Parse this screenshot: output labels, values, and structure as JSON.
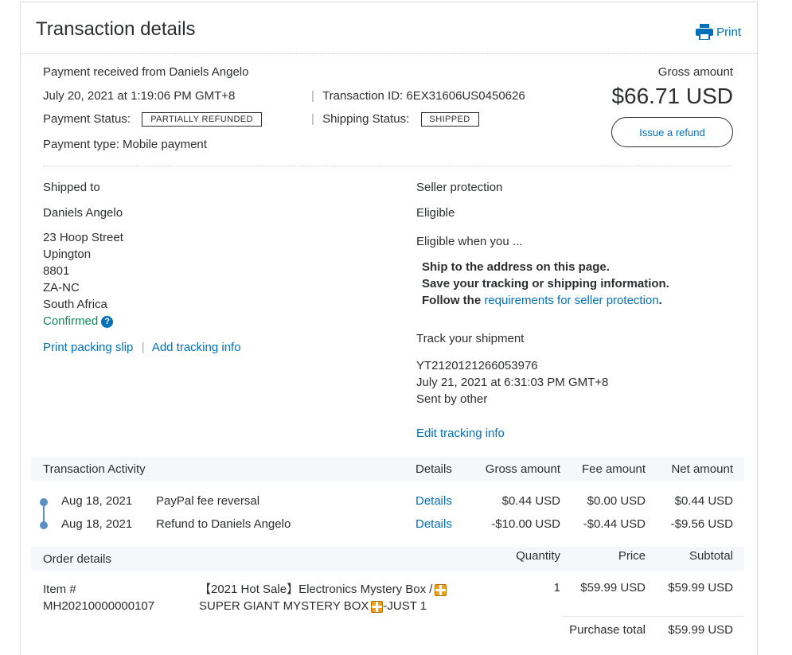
{
  "header": {
    "title": "Transaction details",
    "print_label": "Print"
  },
  "summary": {
    "received_from": "Payment received from Daniels Angelo",
    "datetime": "July 20, 2021 at 1:19:06 PM GMT+8",
    "transaction_id": "Transaction ID: 6EX31606US0450626",
    "payment_status_label": "Payment Status:",
    "payment_status_value": "PARTIALLY REFUNDED",
    "shipping_status_label": "Shipping Status:",
    "shipping_status_value": "SHIPPED",
    "payment_type": "Payment type: Mobile payment",
    "gross_label": "Gross amount",
    "gross_value": "$66.71 USD",
    "refund_button": "Issue a refund"
  },
  "shipping": {
    "heading": "Shipped to",
    "name": "Daniels Angelo",
    "address": [
      "23 Hoop Street",
      "Upington",
      "8801",
      "ZA-NC",
      "South Africa"
    ],
    "status": "Confirmed",
    "help_icon": "question-icon",
    "print_slip": "Print packing slip",
    "add_tracking": "Add tracking info"
  },
  "seller_protection": {
    "heading": "Seller protection",
    "status": "Eligible",
    "when_label": "Eligible when you ...",
    "items": [
      "Ship to the address on this page.",
      "Save your tracking or shipping information."
    ],
    "follow_prefix": "Follow the ",
    "follow_link": "requirements for seller protection",
    "follow_suffix": "."
  },
  "tracking": {
    "heading": "Track your shipment",
    "number": "YT2120121266053976",
    "datetime": "July 21, 2021 at 6:31:03 PM GMT+8",
    "sent_by": "Sent by other",
    "edit_link": "Edit tracking info"
  },
  "activity": {
    "headers": {
      "title": "Transaction Activity",
      "details": "Details",
      "gross": "Gross amount",
      "fee": "Fee amount",
      "net": "Net amount"
    },
    "rows": [
      {
        "date": "Aug 18, 2021",
        "desc": "PayPal fee reversal",
        "details": "Details",
        "gross": "$0.44 USD",
        "fee": "$0.00 USD",
        "net": "$0.44 USD"
      },
      {
        "date": "Aug 18, 2021",
        "desc": "Refund to Daniels Angelo",
        "details": "Details",
        "gross": "-$10.00 USD",
        "fee": "-$0.44 USD",
        "net": "-$9.56 USD"
      }
    ]
  },
  "order": {
    "headers": {
      "title": "Order details",
      "quantity": "Quantity",
      "price": "Price",
      "subtotal": "Subtotal"
    },
    "item_label": "Item #",
    "item_number": "MH20210000000107",
    "item_name_line1": "【2021 Hot Sale】Electronics Mystery Box /",
    "item_name_line2a": "SUPER GIANT MYSTERY BOX",
    "item_name_line2b": "-JUST 1",
    "gift_icon": "gift-icon",
    "quantity": "1",
    "price": "$59.99 USD",
    "subtotal": "$59.99 USD",
    "purchase_total_label": "Purchase total",
    "purchase_total_value": "$59.99 USD"
  }
}
